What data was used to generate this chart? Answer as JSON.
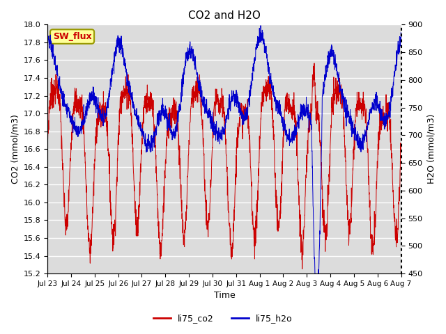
{
  "title": "CO2 and H2O",
  "xlabel": "Time",
  "ylabel_left": "CO2 (mmol/m3)",
  "ylabel_right": "H2O (mmol/m3)",
  "co2_ylim": [
    15.2,
    18.0
  ],
  "h2o_ylim": [
    450,
    900
  ],
  "co2_color": "#CC0000",
  "h2o_color": "#0000CC",
  "co2_label": "li75_co2",
  "h2o_label": "li75_h2o",
  "annotation_text": "SW_flux",
  "annotation_color": "#CC0000",
  "annotation_bg": "#FFFF99",
  "plot_bg": "#DCDCDC",
  "n_points": 2000,
  "x_tick_labels": [
    "Jul 23",
    "Jul 24",
    "Jul 25",
    "Jul 26",
    "Jul 27",
    "Jul 28",
    "Jul 29",
    "Jul 30",
    "Jul 31",
    "Aug 1",
    "Aug 2",
    "Aug 3",
    "Aug 4",
    "Aug 5",
    "Aug 6",
    "Aug 7"
  ],
  "co2_yticks": [
    15.2,
    15.4,
    15.6,
    15.8,
    16.0,
    16.2,
    16.4,
    16.6,
    16.8,
    17.0,
    17.2,
    17.4,
    17.6,
    17.8,
    18.0
  ],
  "h2o_yticks": [
    450,
    500,
    550,
    600,
    650,
    700,
    750,
    800,
    850,
    900
  ]
}
